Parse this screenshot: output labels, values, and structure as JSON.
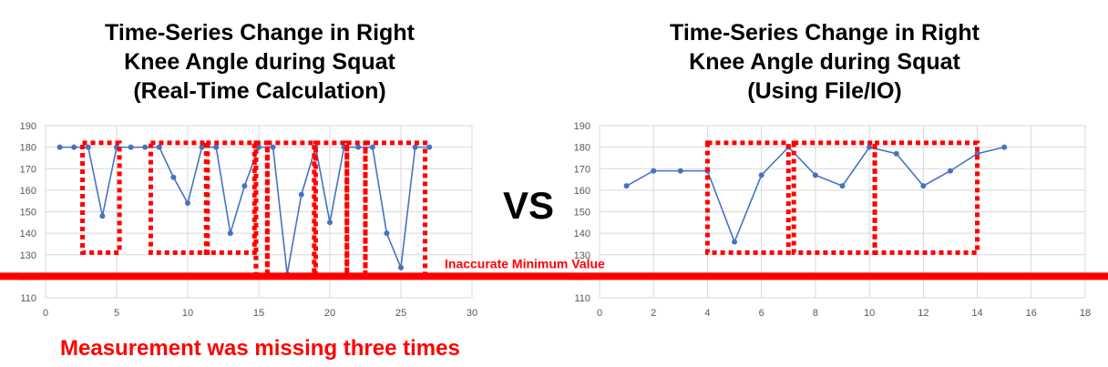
{
  "titles": {
    "left": "Time-Series Change in Right\nKnee Angle during Squat\n(Real-Time Calculation)",
    "right": "Time-Series Change in Right\nKnee Angle during Squat\n(Using File/IO)"
  },
  "vs_label": "VS",
  "annotation": "Inaccurate Minimum Value",
  "missing_note": "Measurement was missing three times",
  "colors": {
    "line": "#4472c4",
    "highlight": "#ff0000",
    "grid": "#d9d9d9",
    "tick": "#595959"
  },
  "chart_data": [
    {
      "type": "line",
      "title": "Time-Series Change in Right Knee Angle during Squat (Real-Time Calculation)",
      "xlim": [
        0,
        30
      ],
      "ylim": [
        110,
        190
      ],
      "x_ticks": [
        0,
        5,
        10,
        15,
        20,
        25,
        30
      ],
      "y_ticks": [
        110,
        120,
        130,
        140,
        150,
        160,
        170,
        180,
        190
      ],
      "grid": true,
      "x": [
        1,
        2,
        3,
        4,
        5,
        6,
        7,
        8,
        9,
        10,
        11,
        12,
        13,
        14,
        15,
        16,
        17,
        18,
        19,
        20,
        21,
        22,
        23,
        24,
        25,
        26,
        27
      ],
      "y": [
        180,
        180,
        180,
        148,
        180,
        180,
        180,
        180,
        166,
        154,
        180,
        180,
        140,
        162,
        180,
        180,
        121,
        158,
        180,
        145,
        180,
        180,
        180,
        140,
        124,
        180,
        180
      ]
    },
    {
      "type": "line",
      "title": "Time-Series Change in Right Knee Angle during Squat (Using File/IO)",
      "xlim": [
        0,
        18
      ],
      "ylim": [
        110,
        190
      ],
      "x_ticks": [
        0,
        2,
        4,
        6,
        8,
        10,
        12,
        14,
        16,
        18
      ],
      "y_ticks": [
        110,
        120,
        130,
        140,
        150,
        160,
        170,
        180,
        190
      ],
      "grid": true,
      "x": [
        1,
        2,
        3,
        4,
        5,
        6,
        7,
        8,
        9,
        10,
        11,
        12,
        13,
        14,
        15
      ],
      "y": [
        162,
        169,
        169,
        169,
        136,
        167,
        180,
        167,
        162,
        180,
        177,
        162,
        169,
        177,
        180
      ]
    }
  ]
}
